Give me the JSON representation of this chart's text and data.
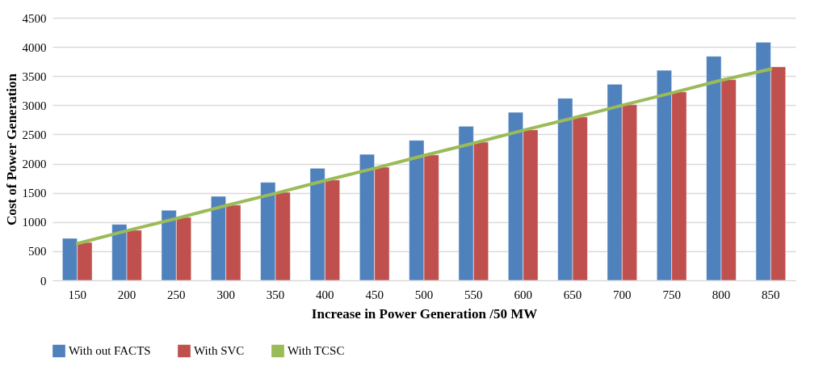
{
  "chart_data": {
    "type": "bar",
    "xlabel": "Increase in Power Generation /50 MW",
    "ylabel": "Cost of Power Generation",
    "categories": [
      "150",
      "200",
      "250",
      "300",
      "350",
      "400",
      "450",
      "500",
      "550",
      "600",
      "650",
      "700",
      "750",
      "800",
      "850"
    ],
    "series": [
      {
        "name": "With out FACTS",
        "color": "#4f81bd",
        "values": [
          720,
          960,
          1200,
          1440,
          1680,
          1920,
          2160,
          2400,
          2640,
          2880,
          3120,
          3360,
          3600,
          3840,
          4080
        ]
      },
      {
        "name": "With SVC",
        "color": "#c0504d",
        "values": [
          650,
          860,
          1080,
          1290,
          1510,
          1720,
          1940,
          2150,
          2370,
          2580,
          2800,
          3010,
          3230,
          3440,
          3660
        ]
      },
      {
        "name": "With TCSC",
        "color": "#9bbb59",
        "type": "line",
        "values": [
          630,
          850,
          1060,
          1280,
          1490,
          1710,
          1920,
          2140,
          2350,
          2570,
          2780,
          3000,
          3210,
          3430,
          3620
        ]
      }
    ],
    "ylim": [
      0,
      4500
    ],
    "yticks": [
      0,
      500,
      1000,
      1500,
      2000,
      2500,
      3000,
      3500,
      4000,
      4500
    ],
    "grid": "y",
    "legend": "bottom"
  }
}
